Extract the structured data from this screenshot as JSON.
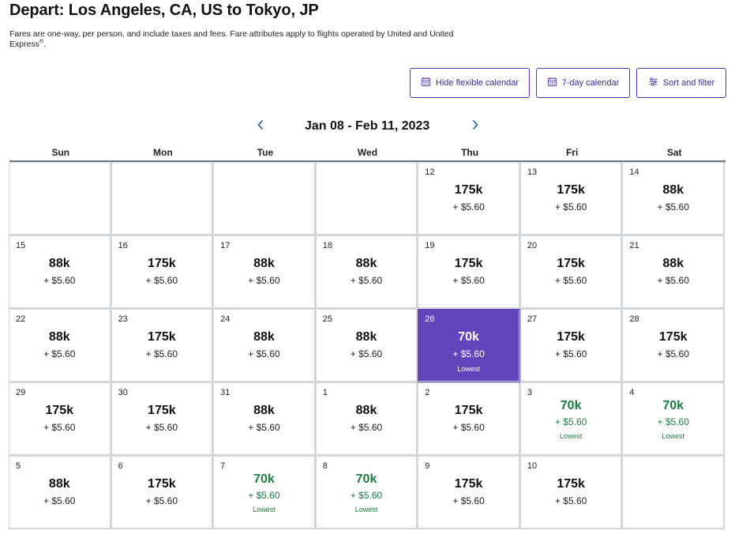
{
  "header": {
    "title": "Depart: Los Angeles, CA, US to Tokyo, JP",
    "subtitle": "Fares are one-way, per person, and include taxes and fees. Fare attributes apply to flights operated by United and United Express",
    "subtitle_mark": "®",
    "subtitle_end": "."
  },
  "toolbar": {
    "hide_calendar": "Hide flexible calendar",
    "seven_day": "7-day calendar",
    "sort_filter": "Sort and filter"
  },
  "nav": {
    "range": "Jan 08 - Feb 11, 2023"
  },
  "weekdays": [
    "Sun",
    "Mon",
    "Tue",
    "Wed",
    "Thu",
    "Fri",
    "Sat"
  ],
  "colors": {
    "accent": "#6244bb",
    "lowest_text": "#1f7a43",
    "button_border": "#5a2fbb"
  },
  "calendar": {
    "cells": [
      {
        "day": "",
        "miles": "",
        "tax": "",
        "note": "",
        "state": "empty"
      },
      {
        "day": "",
        "miles": "",
        "tax": "",
        "note": "",
        "state": "empty"
      },
      {
        "day": "",
        "miles": "",
        "tax": "",
        "note": "",
        "state": "empty"
      },
      {
        "day": "",
        "miles": "",
        "tax": "",
        "note": "",
        "state": "empty"
      },
      {
        "day": "12",
        "miles": "175k",
        "tax": "+ $5.60",
        "note": "",
        "state": "normal"
      },
      {
        "day": "13",
        "miles": "175k",
        "tax": "+ $5.60",
        "note": "",
        "state": "normal"
      },
      {
        "day": "14",
        "miles": "88k",
        "tax": "+ $5.60",
        "note": "",
        "state": "normal"
      },
      {
        "day": "15",
        "miles": "88k",
        "tax": "+ $5.60",
        "note": "",
        "state": "normal"
      },
      {
        "day": "16",
        "miles": "175k",
        "tax": "+ $5.60",
        "note": "",
        "state": "normal"
      },
      {
        "day": "17",
        "miles": "88k",
        "tax": "+ $5.60",
        "note": "",
        "state": "normal"
      },
      {
        "day": "18",
        "miles": "88k",
        "tax": "+ $5.60",
        "note": "",
        "state": "normal"
      },
      {
        "day": "19",
        "miles": "175k",
        "tax": "+ $5.60",
        "note": "",
        "state": "normal"
      },
      {
        "day": "20",
        "miles": "175k",
        "tax": "+ $5.60",
        "note": "",
        "state": "normal"
      },
      {
        "day": "21",
        "miles": "88k",
        "tax": "+ $5.60",
        "note": "",
        "state": "normal"
      },
      {
        "day": "22",
        "miles": "88k",
        "tax": "+ $5.60",
        "note": "",
        "state": "normal"
      },
      {
        "day": "23",
        "miles": "175k",
        "tax": "+ $5.60",
        "note": "",
        "state": "normal"
      },
      {
        "day": "24",
        "miles": "88k",
        "tax": "+ $5.60",
        "note": "",
        "state": "normal"
      },
      {
        "day": "25",
        "miles": "88k",
        "tax": "+ $5.60",
        "note": "",
        "state": "normal"
      },
      {
        "day": "26",
        "miles": "70k",
        "tax": "+ $5.60",
        "note": "Lowest",
        "state": "selected"
      },
      {
        "day": "27",
        "miles": "175k",
        "tax": "+ $5.60",
        "note": "",
        "state": "normal"
      },
      {
        "day": "28",
        "miles": "175k",
        "tax": "+ $5.60",
        "note": "",
        "state": "normal"
      },
      {
        "day": "29",
        "miles": "175k",
        "tax": "+ $5.60",
        "note": "",
        "state": "normal"
      },
      {
        "day": "30",
        "miles": "175k",
        "tax": "+ $5.60",
        "note": "",
        "state": "normal"
      },
      {
        "day": "31",
        "miles": "88k",
        "tax": "+ $5.60",
        "note": "",
        "state": "normal"
      },
      {
        "day": "1",
        "miles": "88k",
        "tax": "+ $5.60",
        "note": "",
        "state": "normal"
      },
      {
        "day": "2",
        "miles": "175k",
        "tax": "+ $5.60",
        "note": "",
        "state": "normal"
      },
      {
        "day": "3",
        "miles": "70k",
        "tax": "+ $5.60",
        "note": "Lowest",
        "state": "lowest"
      },
      {
        "day": "4",
        "miles": "70k",
        "tax": "+ $5.60",
        "note": "Lowest",
        "state": "lowest"
      },
      {
        "day": "5",
        "miles": "88k",
        "tax": "+ $5.60",
        "note": "",
        "state": "normal"
      },
      {
        "day": "6",
        "miles": "175k",
        "tax": "+ $5.60",
        "note": "",
        "state": "normal"
      },
      {
        "day": "7",
        "miles": "70k",
        "tax": "+ $5.60",
        "note": "Lowest",
        "state": "lowest"
      },
      {
        "day": "8",
        "miles": "70k",
        "tax": "+ $5.60",
        "note": "Lowest",
        "state": "lowest"
      },
      {
        "day": "9",
        "miles": "175k",
        "tax": "+ $5.60",
        "note": "",
        "state": "normal"
      },
      {
        "day": "10",
        "miles": "175k",
        "tax": "+ $5.60",
        "note": "",
        "state": "normal"
      },
      {
        "day": "",
        "miles": "",
        "tax": "",
        "note": "",
        "state": "empty"
      }
    ]
  }
}
